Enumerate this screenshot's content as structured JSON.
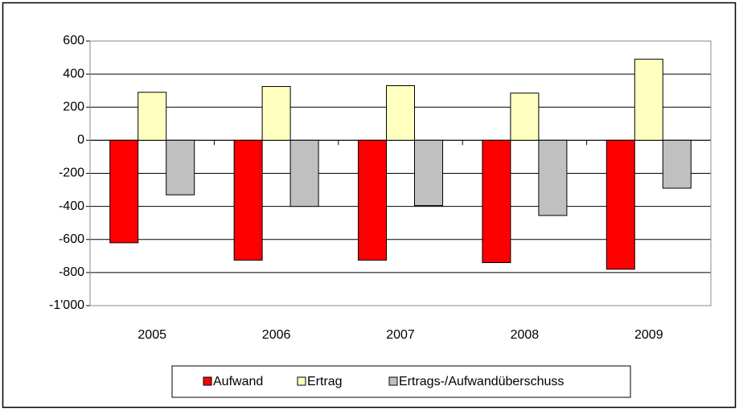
{
  "chart_data": {
    "type": "bar",
    "categories": [
      "2005",
      "2006",
      "2007",
      "2008",
      "2009"
    ],
    "series": [
      {
        "name": "Aufwand",
        "color": "#ff0000",
        "values": [
          -620,
          -725,
          -725,
          -740,
          -780
        ]
      },
      {
        "name": "Ertrag",
        "color": "#ffffc0",
        "values": [
          290,
          325,
          330,
          285,
          490
        ]
      },
      {
        "name": "Ertrags-/Aufwandüberschuss",
        "color": "#c0c0c0",
        "values": [
          -330,
          -400,
          -395,
          -455,
          -290
        ]
      }
    ],
    "ylim": [
      -1000,
      600
    ],
    "yticks": [
      {
        "value": -1000,
        "label": "-1'000"
      },
      -800,
      -600,
      -400,
      -200,
      0,
      200,
      400,
      600
    ],
    "grid": true,
    "legend": "bottom"
  }
}
